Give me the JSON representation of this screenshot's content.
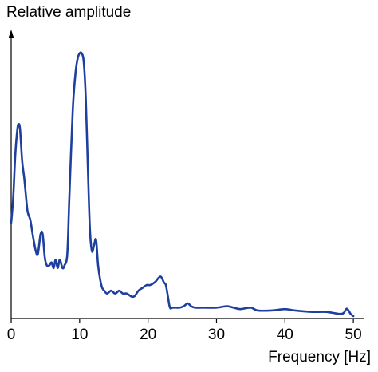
{
  "chart_data": {
    "type": "line",
    "title": "",
    "ylabel": "Relative amplitude",
    "xlabel": "Frequency [Hz]",
    "xlim": [
      0,
      51.5
    ],
    "ylim": [
      0,
      1.0
    ],
    "xticks": [
      0,
      10,
      20,
      30,
      40,
      50
    ],
    "y_tick_labels_shown": false,
    "grid": false,
    "legend": "none",
    "series": [
      {
        "color": "#1f3f9f",
        "x": [
          0,
          0.3,
          0.6,
          0.9,
          1.1,
          1.3,
          1.6,
          1.9,
          2.1,
          2.4,
          2.8,
          3.2,
          3.6,
          3.9,
          4.3,
          4.6,
          4.9,
          5.2,
          5.6,
          5.9,
          6.2,
          6.5,
          6.8,
          7.1,
          7.5,
          7.8,
          8.2,
          8.5,
          9.0,
          9.4,
          9.7,
          10.0,
          10.3,
          10.6,
          10.9,
          11.2,
          11.5,
          11.8,
          12.1,
          12.4,
          12.7,
          13.0,
          13.3,
          13.6,
          14.0,
          14.6,
          15.2,
          15.8,
          16.3,
          16.9,
          17.5,
          18.0,
          18.6,
          19.2,
          19.8,
          20.3,
          21.0,
          21.8,
          22.3,
          22.6,
          22.9,
          23.2,
          23.6,
          24.1,
          24.6,
          25.2,
          25.8,
          26.3,
          26.9,
          28.0,
          30.0,
          31.5,
          32.5,
          33.5,
          35.0,
          36.0,
          38.0,
          40.0,
          41.5,
          44.0,
          46.0,
          48.0,
          48.6,
          49.0,
          49.3,
          49.6,
          50.0
        ],
        "y": [
          0.33,
          0.42,
          0.57,
          0.66,
          0.68,
          0.66,
          0.55,
          0.49,
          0.44,
          0.37,
          0.34,
          0.28,
          0.23,
          0.22,
          0.29,
          0.29,
          0.21,
          0.18,
          0.18,
          0.19,
          0.17,
          0.2,
          0.17,
          0.2,
          0.17,
          0.18,
          0.22,
          0.42,
          0.73,
          0.86,
          0.91,
          0.93,
          0.93,
          0.9,
          0.77,
          0.53,
          0.31,
          0.23,
          0.25,
          0.27,
          0.18,
          0.13,
          0.1,
          0.09,
          0.08,
          0.09,
          0.08,
          0.09,
          0.08,
          0.08,
          0.07,
          0.07,
          0.09,
          0.1,
          0.11,
          0.11,
          0.12,
          0.14,
          0.12,
          0.11,
          0.07,
          0.03,
          0.03,
          0.03,
          0.03,
          0.035,
          0.045,
          0.035,
          0.03,
          0.03,
          0.03,
          0.035,
          0.03,
          0.025,
          0.03,
          0.02,
          0.02,
          0.025,
          0.02,
          0.015,
          0.015,
          0.008,
          0.012,
          0.026,
          0.02,
          0.008,
          0.0
        ]
      }
    ]
  }
}
